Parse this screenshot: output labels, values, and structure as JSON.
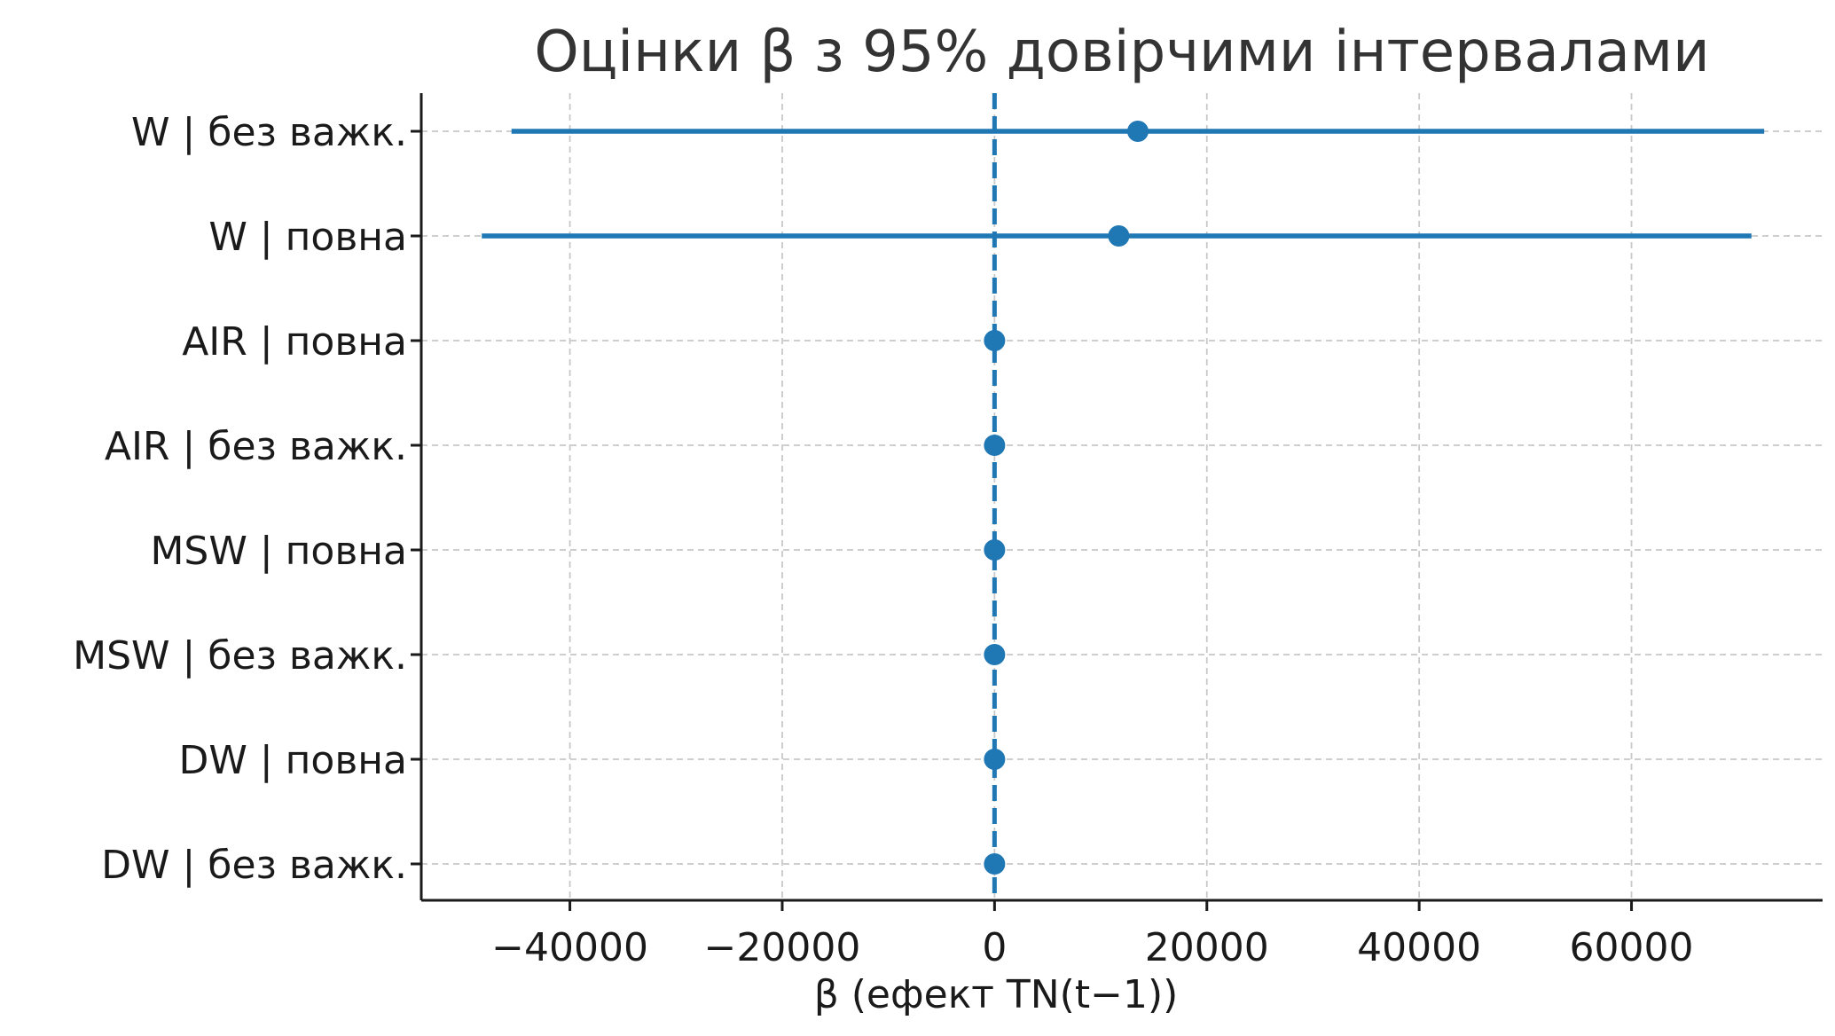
{
  "chart_data": {
    "type": "scatter",
    "title": "Оцінки β з 95% довірчими інтервалами",
    "xlabel": "β (ефект TN(t−1))",
    "ylabel": "",
    "xlim": [
      -54000,
      78000
    ],
    "xticks": [
      -40000,
      -20000,
      0,
      20000,
      40000,
      60000
    ],
    "xtick_labels": [
      "−40000",
      "−20000",
      "0",
      "20000",
      "40000",
      "60000"
    ],
    "reference_line": 0,
    "grid": true,
    "colors": {
      "series": "#1f77b4",
      "grid": "#c8c8c8",
      "axis": "#1a1a1a"
    },
    "series": [
      {
        "label": "W | без важк.",
        "estimate": 13500,
        "ci_low": -45500,
        "ci_high": 72500
      },
      {
        "label": "W | повна",
        "estimate": 11700,
        "ci_low": -48300,
        "ci_high": 71300
      },
      {
        "label": "AIR | повна",
        "estimate": 0,
        "ci_low": 0,
        "ci_high": 0
      },
      {
        "label": "AIR | без важк.",
        "estimate": 0,
        "ci_low": 0,
        "ci_high": 0
      },
      {
        "label": "MSW | повна",
        "estimate": 0,
        "ci_low": 0,
        "ci_high": 0
      },
      {
        "label": "MSW | без важк.",
        "estimate": 0,
        "ci_low": 0,
        "ci_high": 0
      },
      {
        "label": "DW | повна",
        "estimate": 0,
        "ci_low": 0,
        "ci_high": 0
      },
      {
        "label": "DW | без важк.",
        "estimate": 0,
        "ci_low": 0,
        "ci_high": 0
      }
    ]
  }
}
